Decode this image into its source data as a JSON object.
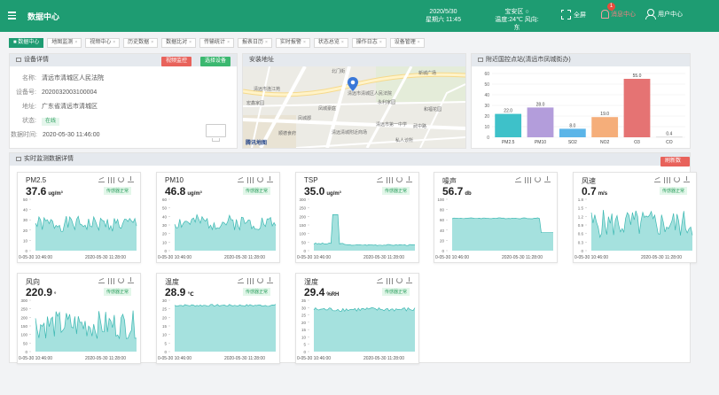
{
  "header": {
    "app_title": "数据中心",
    "date": "2020/5/30",
    "weekday_time": "星期六 11:45",
    "district": "宝安区",
    "weather": "温度:24℃ 风向:东",
    "fullscreen_label": "全屏",
    "messages_label": "消息中心",
    "messages_count": "1",
    "user_label": "用户中心"
  },
  "tabs": [
    {
      "label": "■ 数据中心",
      "active": true
    },
    {
      "label": "地图监测"
    },
    {
      "label": "视频中心"
    },
    {
      "label": "历史数据"
    },
    {
      "label": "数据比对"
    },
    {
      "label": "传输统计"
    },
    {
      "label": "报表日历"
    },
    {
      "label": "实时报警"
    },
    {
      "label": "状态总览"
    },
    {
      "label": "操作日志"
    },
    {
      "label": "设备管理"
    }
  ],
  "device_panel": {
    "title": "设备详情",
    "btn_video": "视频监控",
    "btn_select": "选择设备",
    "rows": [
      {
        "label": "名称:",
        "value": "清远市清城区人民法院"
      },
      {
        "label": "设备号:",
        "value": "2020032003100004"
      },
      {
        "label": "地址:",
        "value": "广东省清远市清城区"
      },
      {
        "label": "状态:",
        "value": "在线"
      },
      {
        "label": "数据时间:",
        "value": "2020-05-30 11:46:00"
      }
    ]
  },
  "map_panel": {
    "title": "安装地址",
    "labels": [
      {
        "text": "北门街"
      },
      {
        "text": "清远市清城区人民法院"
      },
      {
        "text": "永利家园"
      },
      {
        "text": "新城广场"
      },
      {
        "text": "清远市连江苑"
      },
      {
        "text": "凤城豪庭"
      },
      {
        "text": "清远市第一中学"
      },
      {
        "text": "清远清城附近商场"
      },
      {
        "text": "顺德食府"
      },
      {
        "text": "私人诊所"
      },
      {
        "text": "凤城郡"
      },
      {
        "text": "宏鑫家园"
      },
      {
        "text": "和福花园"
      },
      {
        "text": "武中路"
      }
    ],
    "brand": "腾讯地图"
  },
  "compare_panel": {
    "title": "附近国控点站(清远市凤城街办)"
  },
  "chart_data": {
    "type": "bar",
    "categories": [
      "PM2.5",
      "PM10",
      "SO2",
      "NO2",
      "O3",
      "CO"
    ],
    "values": [
      22.0,
      28.0,
      8.0,
      19.0,
      55.0,
      0.4
    ],
    "value_labels": [
      "22.0",
      "28.0",
      "8.0",
      "19.0",
      "55.0",
      "0.4"
    ],
    "colors": [
      "#3ec1c9",
      "#b39ddb",
      "#5bb5e8",
      "#f5ae7a",
      "#e57373",
      "#c8c8c8"
    ],
    "ylim": [
      0,
      60
    ],
    "yticks": [
      "0",
      "10",
      "20",
      "30",
      "40",
      "50",
      "60"
    ],
    "grid": true
  },
  "realtime_panel": {
    "title": "实时监测数据详情",
    "refresh_btn": "刷新数据",
    "time_start": "0-05-30 10:46:00",
    "time_end": "2020-05-30 11:28:00",
    "cards": [
      {
        "name": "PM2.5",
        "value": "37.6",
        "unit": "ug/m³",
        "status": "传感器正常",
        "yticks": [
          "50",
          "40",
          "30",
          "20",
          "10",
          "0"
        ],
        "ymax": 50
      },
      {
        "name": "PM10",
        "value": "46.8",
        "unit": "ug/m³",
        "status": "传感器正常",
        "yticks": [
          "60",
          "50",
          "40",
          "30",
          "20",
          "10",
          "0"
        ],
        "ymax": 60
      },
      {
        "name": "TSP",
        "value": "35.0",
        "unit": "ug/m³",
        "status": "传感器正常",
        "yticks": [
          "300",
          "250",
          "200",
          "150",
          "100",
          "50",
          "0"
        ],
        "ymax": 300
      },
      {
        "name": "噪声",
        "value": "56.7",
        "unit": "db",
        "status": "",
        "yticks": [
          "100",
          "80",
          "60",
          "40",
          "20",
          "0"
        ],
        "ymax": 100
      },
      {
        "name": "风速",
        "value": "0.7",
        "unit": "m/s",
        "status": "传感器正常",
        "yticks": [
          "1.8",
          "1.5",
          "1.2",
          "0.9",
          "0.6",
          "0.3",
          "0"
        ],
        "ymax": 1.8
      },
      {
        "name": "风向",
        "value": "220.9",
        "unit": "°",
        "status": "传感器正常",
        "yticks": [
          "300",
          "250",
          "200",
          "150",
          "100",
          "50",
          "0"
        ],
        "ymax": 300
      },
      {
        "name": "温度",
        "value": "28.9",
        "unit": "℃",
        "status": "传感器正常",
        "yticks": [
          "30",
          "25",
          "20",
          "15",
          "10",
          "5",
          "0"
        ],
        "ymax": 30
      },
      {
        "name": "湿度",
        "value": "29.4",
        "unit": "%RH",
        "status": "传感器正常",
        "yticks": [
          "35",
          "30",
          "25",
          "20",
          "15",
          "10",
          "5",
          "0"
        ],
        "ymax": 35
      }
    ]
  }
}
